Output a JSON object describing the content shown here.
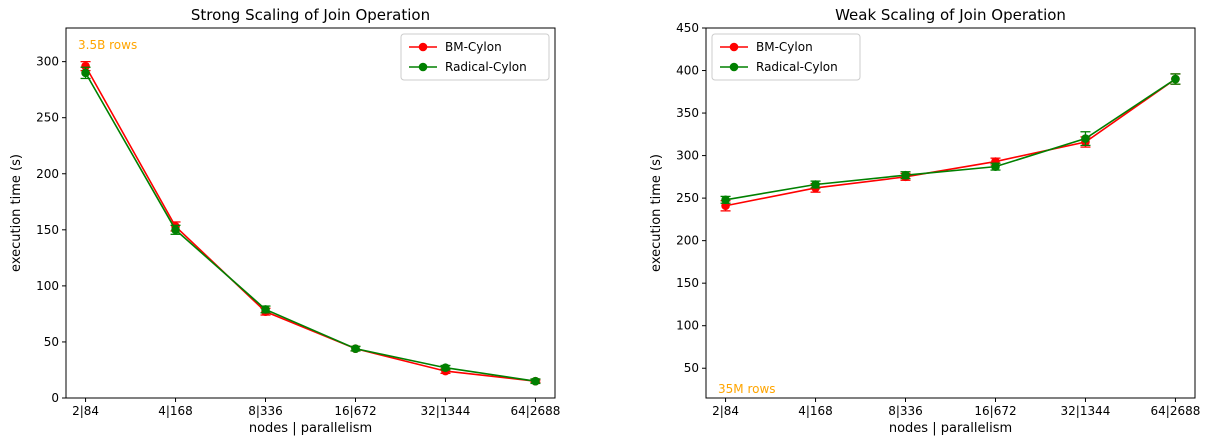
{
  "colors": {
    "bm": "#ff0000",
    "radical": "#008000",
    "annotation": "#ffa500"
  },
  "chart_data": [
    {
      "type": "line",
      "title": "Strong Scaling of Join Operation",
      "xlabel": "nodes | parallelism",
      "ylabel": "execution time (s)",
      "categories": [
        "2|84",
        "4|168",
        "8|336",
        "16|672",
        "32|1344",
        "64|2688"
      ],
      "ylim": [
        0,
        330
      ],
      "yticks": [
        0,
        50,
        100,
        150,
        200,
        250,
        300
      ],
      "annotation": "3.5B rows",
      "legend": "top-right",
      "series": [
        {
          "name": "BM-Cylon",
          "color": "#ff0000",
          "values": [
            296,
            153,
            77,
            44,
            24,
            15
          ],
          "errors": [
            4,
            4,
            3,
            2,
            2,
            1
          ]
        },
        {
          "name": "Radical-Cylon",
          "color": "#008000",
          "values": [
            290,
            150,
            79,
            44,
            27,
            15
          ],
          "errors": [
            5,
            4,
            3,
            2,
            2,
            2
          ]
        }
      ]
    },
    {
      "type": "line",
      "title": "Weak Scaling of Join Operation",
      "xlabel": "nodes | parallelism",
      "ylabel": "execution time (s)",
      "categories": [
        "2|84",
        "4|168",
        "8|336",
        "16|672",
        "32|1344",
        "64|2688"
      ],
      "ylim": [
        15,
        450
      ],
      "yticks": [
        50,
        100,
        150,
        200,
        250,
        300,
        350,
        400,
        450
      ],
      "annotation": "35M rows",
      "legend": "top-left",
      "series": [
        {
          "name": "BM-Cylon",
          "color": "#ff0000",
          "values": [
            241,
            262,
            275,
            293,
            316,
            390
          ],
          "errors": [
            6,
            5,
            4,
            4,
            6,
            6
          ]
        },
        {
          "name": "Radical-Cylon",
          "color": "#008000",
          "values": [
            248,
            266,
            277,
            287,
            320,
            390
          ],
          "errors": [
            4,
            4,
            4,
            4,
            8,
            6
          ]
        }
      ]
    }
  ]
}
